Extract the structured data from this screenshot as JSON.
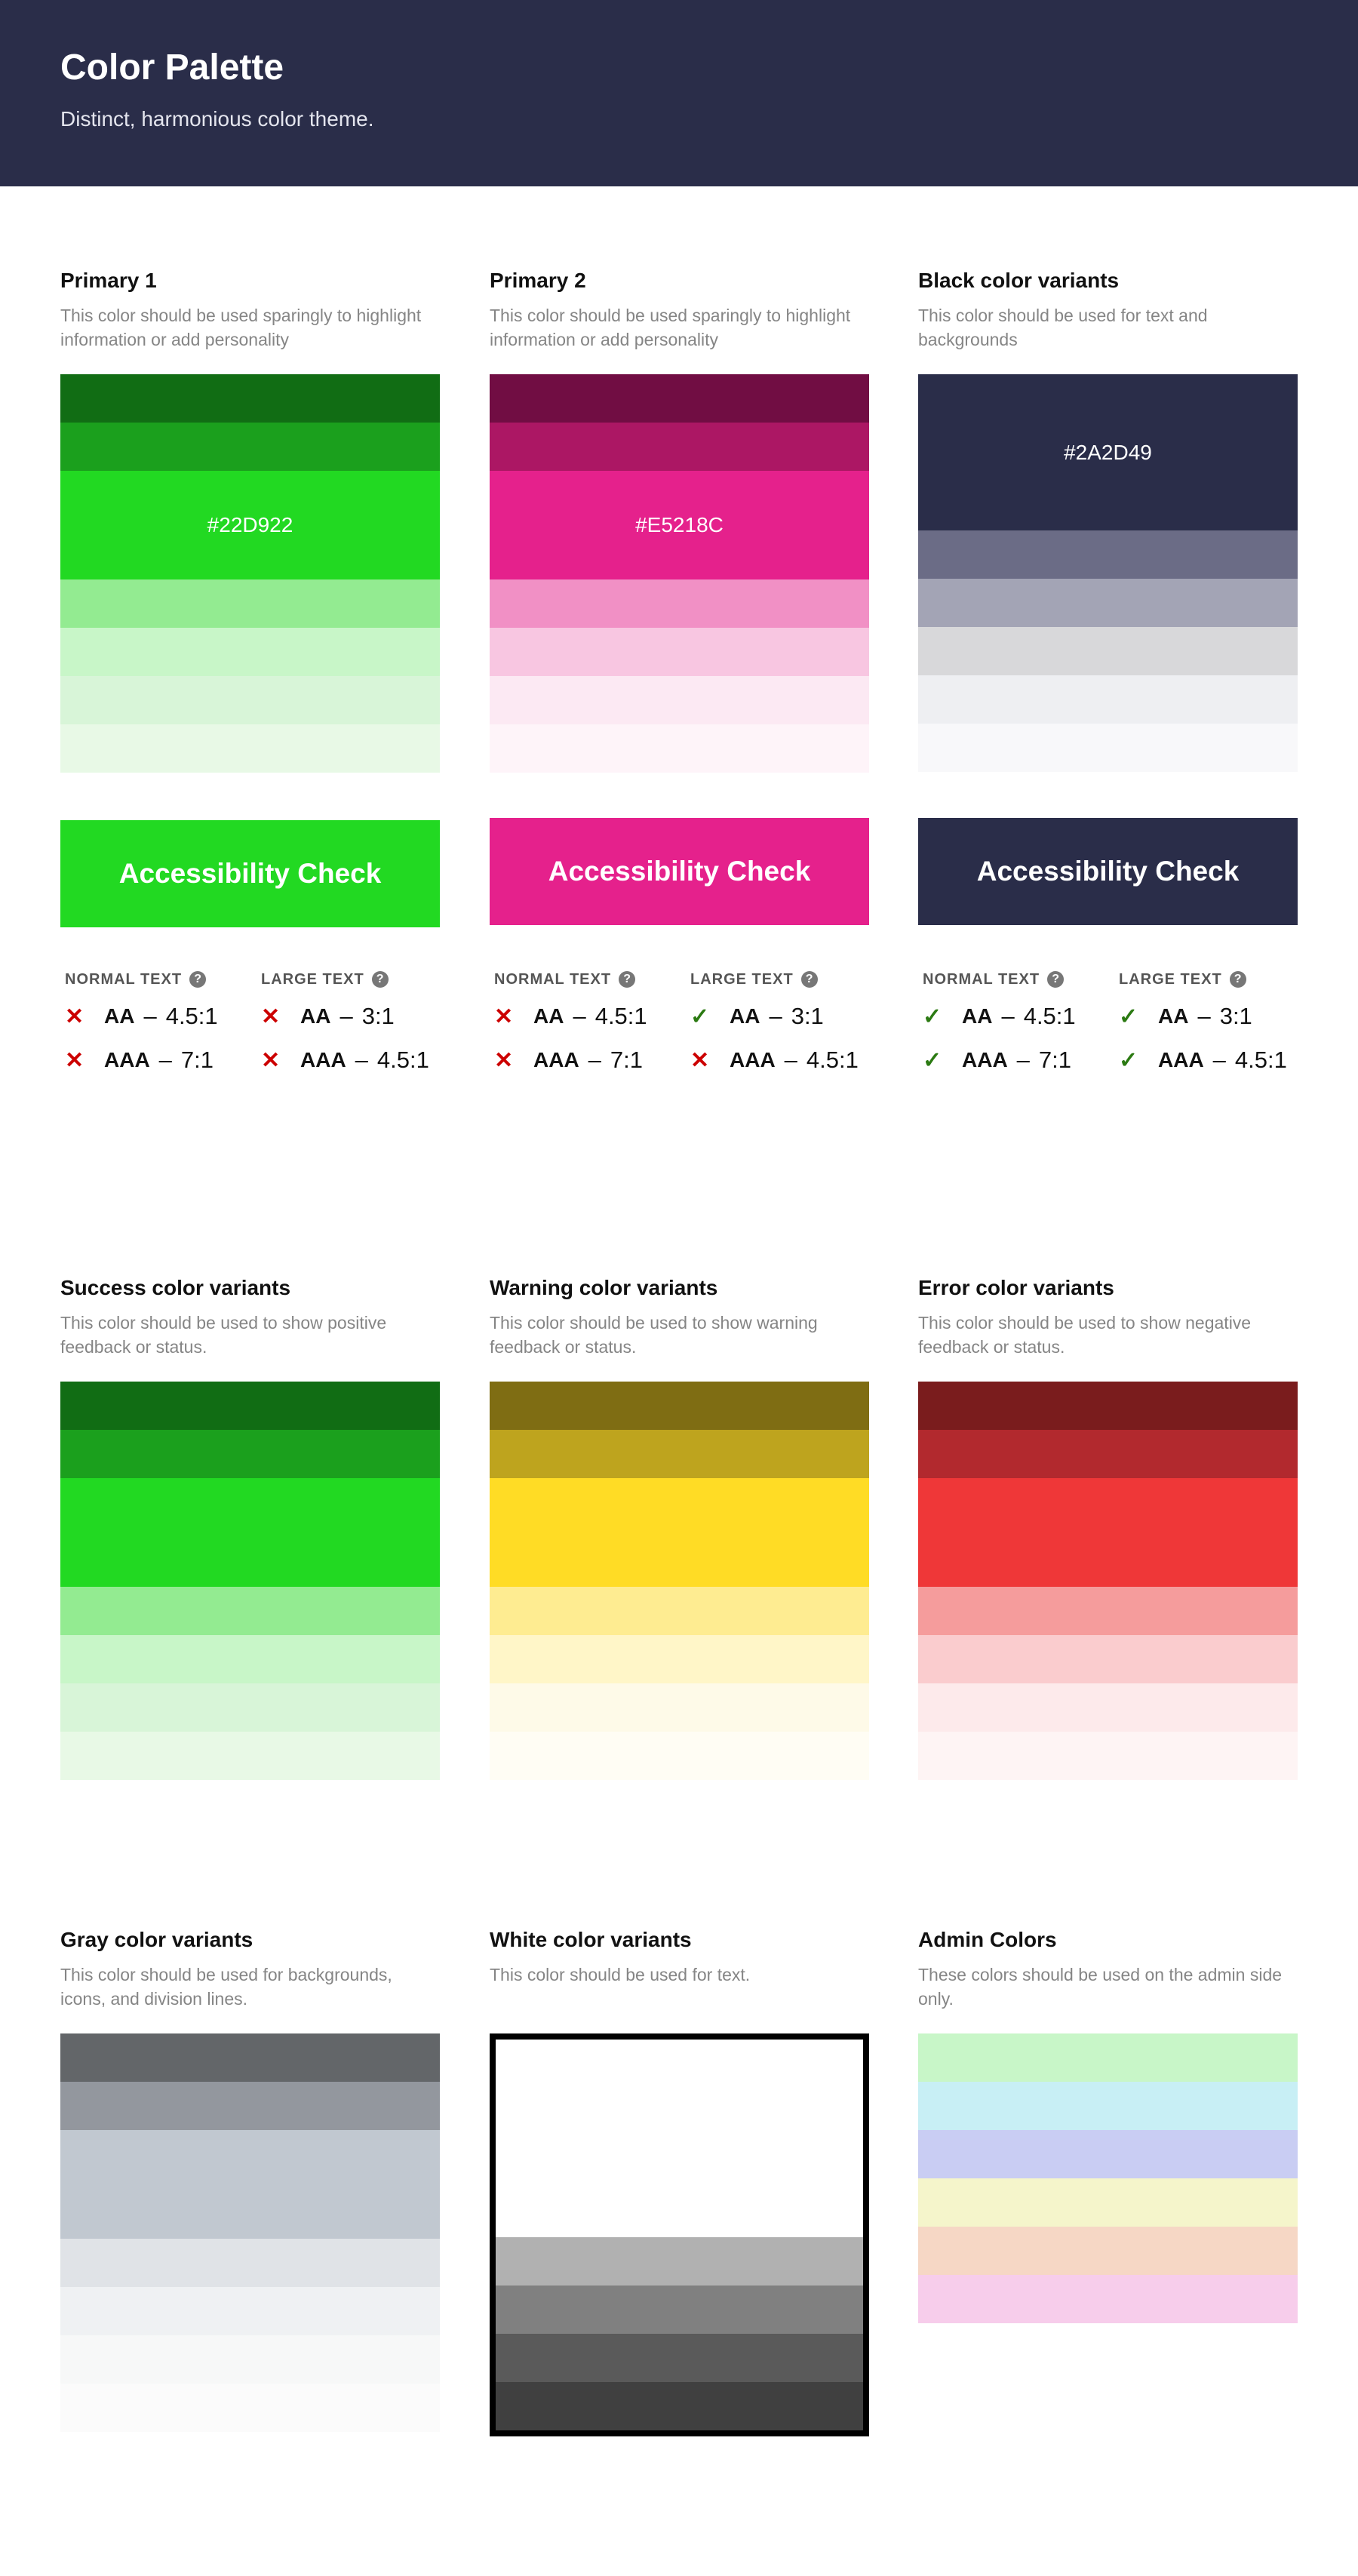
{
  "header": {
    "title": "Color Palette",
    "subtitle": "Distinct, harmonious color theme."
  },
  "check_labels": {
    "normal": "NORMAL TEXT",
    "large": "LARGE TEXT",
    "help": "?",
    "pass": "✓",
    "fail": "✕",
    "dash": "–"
  },
  "palettes": [
    {
      "key": "primary1",
      "title": "Primary 1",
      "desc": "This color should be used sparingly to highlight information or add personality",
      "colors": [
        "#116d14",
        "#1ba01d",
        "#22d922",
        "#93eb91",
        "#c8f6c8",
        "#d8f5d8",
        "#e8f9e6"
      ],
      "main": 2,
      "main_label": "#22D922",
      "accessibility": {
        "label": "Accessibility Check",
        "color": "#22d922",
        "normal": [
          {
            "level": "AA",
            "ratio": "4.5:1",
            "pass": false
          },
          {
            "level": "AAA",
            "ratio": "7:1",
            "pass": false
          }
        ],
        "large": [
          {
            "level": "AA",
            "ratio": "3:1",
            "pass": false
          },
          {
            "level": "AAA",
            "ratio": "4.5:1",
            "pass": false
          }
        ]
      }
    },
    {
      "key": "primary2",
      "title": "Primary 2",
      "desc": "This color should be used sparingly to highlight information or add personality",
      "colors": [
        "#710d43",
        "#ac1764",
        "#e5218c",
        "#f190c5",
        "#f8c6e1",
        "#fce9f3",
        "#fef4f9"
      ],
      "main": 2,
      "main_label": "#E5218C",
      "accessibility": {
        "label": "Accessibility Check",
        "color": "#e5218c",
        "normal": [
          {
            "level": "AA",
            "ratio": "4.5:1",
            "pass": false
          },
          {
            "level": "AAA",
            "ratio": "7:1",
            "pass": false
          }
        ],
        "large": [
          {
            "level": "AA",
            "ratio": "3:1",
            "pass": true
          },
          {
            "level": "AAA",
            "ratio": "4.5:1",
            "pass": false
          }
        ]
      }
    },
    {
      "key": "black",
      "title": "Black color variants",
      "desc": "This color should be used for text and backgrounds",
      "colors": [
        "#2a2d49",
        "#6b6c86",
        "#a3a4b5",
        "#d8d8da",
        "#eeeff2",
        "#f8f8fa"
      ],
      "main": 0,
      "main_label": "#2A2D49",
      "accessibility": {
        "label": "Accessibility Check",
        "color": "#2a2d49",
        "normal": [
          {
            "level": "AA",
            "ratio": "4.5:1",
            "pass": true
          },
          {
            "level": "AAA",
            "ratio": "7:1",
            "pass": true
          }
        ],
        "large": [
          {
            "level": "AA",
            "ratio": "3:1",
            "pass": true
          },
          {
            "level": "AAA",
            "ratio": "4.5:1",
            "pass": true
          }
        ]
      }
    },
    {
      "key": "success",
      "title": "Success color variants",
      "desc": "This color should be used to show positive feedback or status.",
      "colors": [
        "#116d14",
        "#1ba01d",
        "#22d922",
        "#93eb91",
        "#c8f6c8",
        "#d8f5d8",
        "#e8f9e6"
      ],
      "main": 2
    },
    {
      "key": "warning",
      "title": "Warning color variants",
      "desc": "This color should be used to show warning feedback or status.",
      "colors": [
        "#7f6d13",
        "#bea41e",
        "#ffdc25",
        "#feec91",
        "#fff6c8",
        "#fefae8",
        "#fffdf4"
      ],
      "main": 2
    },
    {
      "key": "error",
      "title": "Error color variants",
      "desc": "This color should be used to show negative feedback or status.",
      "colors": [
        "#7a1c1d",
        "#b2292e",
        "#ef3738",
        "#f59c9c",
        "#faccce",
        "#fdeaeb",
        "#fef4f4"
      ],
      "main": 2
    },
    {
      "key": "gray",
      "title": "Gray color variants",
      "desc": "This color should be used for backgrounds, icons, and division lines.",
      "colors": [
        "#636669",
        "#93979e",
        "#c1c8d0",
        "#e0e3e7",
        "#eff1f3",
        "#f7f8f8",
        "#fbfbfb"
      ],
      "main": 2
    },
    {
      "key": "white",
      "title": "White color variants",
      "desc": "This color should be used for text.",
      "colors": [
        "#ffffff",
        "#b1b1b1",
        "#808080",
        "#5a5a5a",
        "#404040"
      ],
      "main": 0
    },
    {
      "key": "admin",
      "title": "Admin Colors",
      "desc": "These colors should be used on the admin side only.",
      "colors": [
        "#c8f6c8",
        "#c8eff5",
        "#c9cdf3",
        "#f5f5cb",
        "#f6d7c5",
        "#f7cdeb"
      ],
      "main": -1
    }
  ]
}
